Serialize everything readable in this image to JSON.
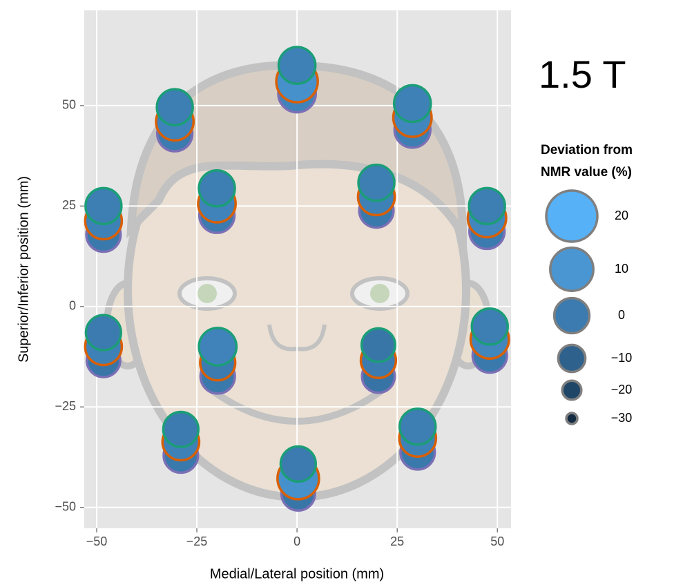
{
  "chart_data": {
    "type": "bubble",
    "annotation": "1.5 T",
    "x_label": "Medial/Lateral position (mm)",
    "y_label": "Superior/Inferior position (mm)",
    "legend_title": [
      "Deviation from",
      "NMR value (%)"
    ],
    "legend_values": [
      20,
      10,
      0,
      -10,
      -20,
      -30
    ],
    "legend_labels": [
      "20",
      "10",
      "0",
      "−10",
      "−20",
      "−30"
    ],
    "size_lim": [
      -30,
      20
    ],
    "color_low": "#132b43",
    "color_high": "#56b1f7",
    "grid": true,
    "xlim": [
      -53.1,
      53.4
    ],
    "ylim": [
      -55.2,
      73.7
    ],
    "xticks": [
      {
        "value": -50,
        "label": "−50"
      },
      {
        "value": -25,
        "label": "−25"
      },
      0,
      25,
      50
    ],
    "yticks": [
      {
        "value": -50,
        "label": "−50"
      },
      {
        "value": -25,
        "label": "−25"
      },
      0,
      25,
      50
    ],
    "series": [
      {
        "color": "#7b6fb5",
        "x": [
          0,
          -30.5,
          28.8,
          -20,
          19.8,
          -48.3,
          47.4,
          -48.3,
          -19.8,
          20.3,
          48.1,
          -29,
          30.1,
          0.3
        ],
        "y": [
          53,
          43,
          44,
          22.7,
          23.9,
          17.9,
          18.7,
          -13.4,
          -17.4,
          -17.4,
          -12.2,
          -37.1,
          -36.3,
          -46.6
        ],
        "values": [
          3,
          0,
          1,
          0,
          -1,
          -1,
          0,
          -2,
          -1,
          -3,
          -1,
          -1,
          -1,
          -2
        ]
      },
      {
        "color": "#d95f02",
        "x": [
          0,
          -30.5,
          28.8,
          -20,
          19.8,
          -48.3,
          47.4,
          -48.3,
          -19.8,
          20.3,
          48.1,
          -29,
          30.1,
          0.3
        ],
        "y": [
          56,
          46,
          47,
          25.6,
          27.3,
          21.3,
          22,
          -10,
          -14,
          -13.4,
          -8.2,
          -33.7,
          -32.8,
          -42.8
        ],
        "values": [
          8,
          3,
          4,
          3,
          2,
          2,
          4,
          2,
          0,
          0,
          4,
          2,
          2,
          8
        ]
      },
      {
        "color": "#1b9e77",
        "x": [
          0,
          -30.5,
          28.8,
          -20,
          19.8,
          -48.3,
          47.4,
          -48.3,
          -19.8,
          20.3,
          48.1,
          -29,
          30.1,
          0.3
        ],
        "y": [
          60,
          49.6,
          50.5,
          29.4,
          30.8,
          25,
          25,
          -6.5,
          -10,
          -9.6,
          -5,
          -30.6,
          -29.9,
          -39.2
        ],
        "values": [
          2,
          1,
          2,
          1,
          1,
          1,
          1,
          0,
          3,
          -2,
          1,
          0,
          1,
          0
        ]
      }
    ]
  }
}
